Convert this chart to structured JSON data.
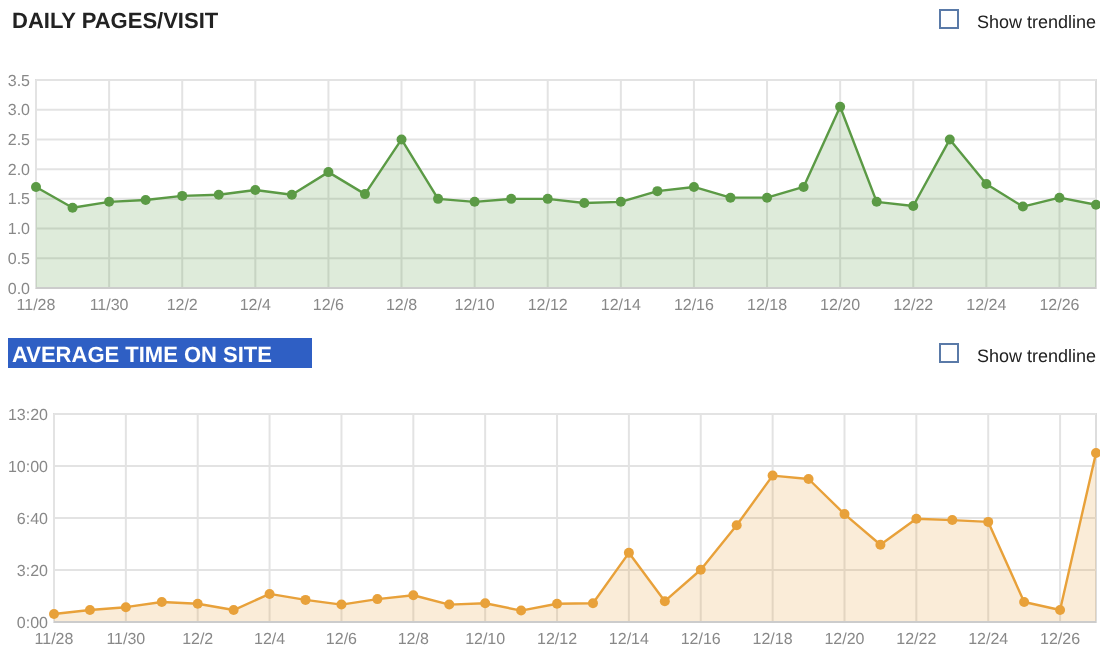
{
  "chart_data": [
    {
      "type": "area",
      "title": "DAILY PAGES/VISIT",
      "annotations": [
        "Show trendline"
      ],
      "categories": [
        "11/28",
        null,
        "11/30",
        null,
        "12/2",
        null,
        "12/4",
        null,
        "12/6",
        null,
        "12/8",
        null,
        "12/10",
        null,
        "12/12",
        null,
        "12/14",
        null,
        "12/16",
        null,
        "12/18",
        null,
        "12/20",
        null,
        "12/22",
        null,
        "12/24",
        null,
        "12/26",
        null
      ],
      "series": [
        {
          "color": "#5b9a45",
          "values": [
            1.7,
            1.35,
            1.45,
            1.48,
            1.55,
            1.57,
            1.65,
            1.57,
            1.95,
            1.58,
            2.5,
            1.5,
            1.45,
            1.5,
            1.5,
            1.43,
            1.45,
            1.63,
            1.7,
            1.52,
            1.52,
            1.7,
            3.05,
            1.45,
            1.38,
            2.5,
            1.75,
            1.37,
            1.52,
            1.4
          ]
        }
      ],
      "ylim": [
        0,
        3.5
      ],
      "yticks": [
        {
          "value": 0,
          "label": "0.0"
        },
        {
          "value": 0.5,
          "label": "0.5"
        },
        {
          "value": 1,
          "label": "1.0"
        },
        {
          "value": 1.5,
          "label": "1.5"
        },
        {
          "value": 2,
          "label": "2.0"
        },
        {
          "value": 2.5,
          "label": "2.5"
        },
        {
          "value": 3,
          "label": "3.0"
        },
        {
          "value": 3.5,
          "label": "3.5"
        }
      ],
      "grid": true,
      "marker": "circle"
    },
    {
      "type": "area",
      "title": "AVERAGE TIME ON SITE",
      "annotations": [
        "Show trendline"
      ],
      "categories": [
        "11/28",
        null,
        "11/30",
        null,
        "12/2",
        null,
        "12/4",
        null,
        "12/6",
        null,
        "12/8",
        null,
        "12/10",
        null,
        "12/12",
        null,
        "12/14",
        null,
        "12/16",
        null,
        "12/18",
        null,
        "12/20",
        null,
        "12/22",
        null,
        "12/24",
        null,
        "12/26",
        null
      ],
      "series": [
        {
          "color": "#e8a13a",
          "values": [
            31,
            46,
            57,
            77,
            70,
            46,
            108,
            85,
            67,
            88,
            103,
            67,
            72,
            44,
            70,
            72,
            266,
            80,
            201,
            372,
            563,
            550,
            415,
            297,
            397,
            392,
            385,
            77,
            46,
            650
          ]
        }
      ],
      "ylim": [
        0,
        800
      ],
      "yticks": [
        {
          "value": 0,
          "label": "0:00"
        },
        {
          "value": 200,
          "label": "3:20"
        },
        {
          "value": 400,
          "label": "6:40"
        },
        {
          "value": 600,
          "label": "10:00"
        },
        {
          "value": 800,
          "label": "13:20"
        }
      ],
      "grid": true,
      "marker": "circle"
    }
  ]
}
